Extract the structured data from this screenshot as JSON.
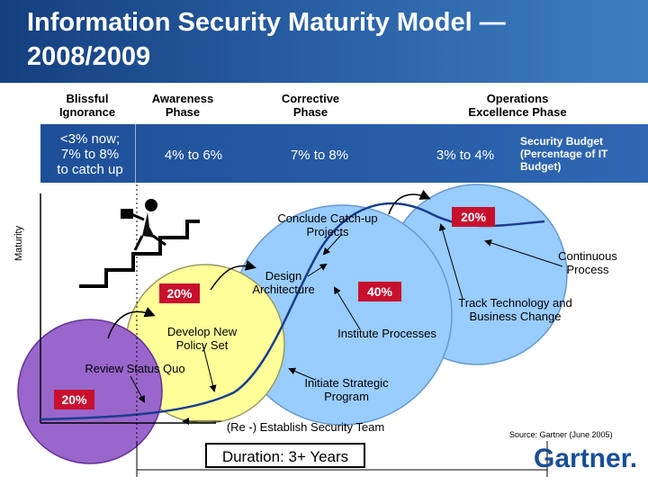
{
  "title": "Information Security Maturity Model —\n2008/2009",
  "phases": [
    {
      "name": "Blissful\nIgnorance",
      "range": "<3% now;\n7% to 8%\nto catch up"
    },
    {
      "name": "Awareness\nPhase",
      "range": "4% to 6%"
    },
    {
      "name": "Corrective\nPhase",
      "range": "7% to 8%"
    },
    {
      "name": "Operations\nExcellence Phase",
      "range": "3% to 4%"
    }
  ],
  "budget_label": "Security Budget\n(Percentage of IT\nBudget)",
  "y_axis_label": "Maturity",
  "percent_badges": [
    "20%",
    "20%",
    "40%",
    "20%"
  ],
  "annotations": {
    "review": "Review Status Quo",
    "policy": "Develop New\nPolicy Set",
    "design": "Design\nArchitecture",
    "catchup": "Conclude Catch-up\nProjects",
    "institute": "Institute Processes",
    "strategic": "Initiate Strategic\nProgram",
    "establish": "(Re -) Establish Security Team",
    "track": "Track Technology and\nBusiness Change",
    "continuous": "Continuous\nProcess"
  },
  "duration": "Duration: 3+ Years",
  "source": "Source: Gartner (June 2005)",
  "logo": "Gartner.",
  "colors": {
    "header": "#1f4f93",
    "band": "#2a5fa8",
    "circle_purple": "#9966cc",
    "circle_yellow": "#ffff99",
    "circle_blue": "#99ccff",
    "badge": "#c8102e",
    "curve": "#1a3c8f"
  }
}
